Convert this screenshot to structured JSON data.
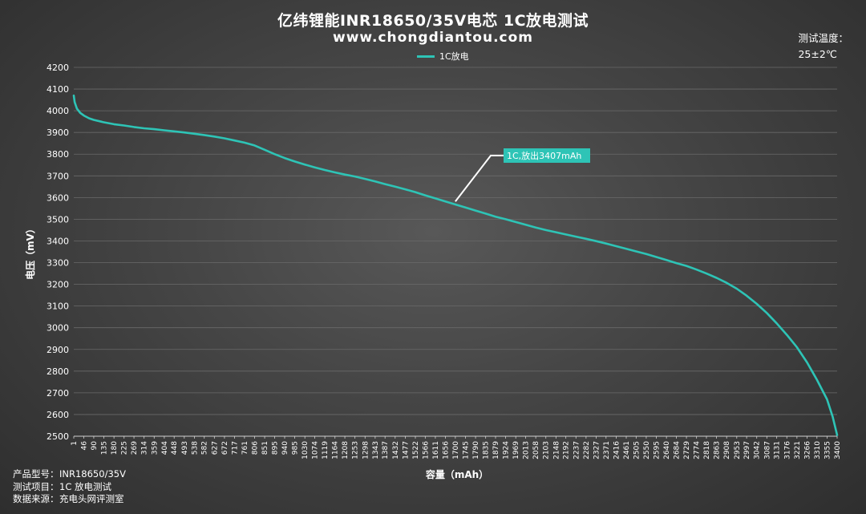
{
  "title": "亿纬锂能INR18650/35V电芯  1C放电测试",
  "subtitle": "www.chongdiantou.com",
  "temperature": {
    "label": "测试温度：",
    "value": "25±2℃"
  },
  "footer": [
    {
      "label": "产品型号：",
      "value": "INR18650/35V"
    },
    {
      "label": "测试项目：",
      "value": "1C 放电测试"
    },
    {
      "label": "数据来源：",
      "value": "充电头网评测室"
    }
  ],
  "chart_data": {
    "type": "line",
    "xlabel": "容量（mAh）",
    "ylabel": "电压（mV）",
    "ylim": [
      2500,
      4200
    ],
    "yticks": [
      2500,
      2600,
      2700,
      2800,
      2900,
      3000,
      3100,
      3200,
      3300,
      3400,
      3500,
      3600,
      3700,
      3800,
      3900,
      4000,
      4100,
      4200
    ],
    "xlim": [
      1,
      3400
    ],
    "xticks": [
      1,
      46,
      90,
      135,
      180,
      225,
      269,
      314,
      359,
      404,
      448,
      493,
      538,
      582,
      627,
      672,
      717,
      761,
      806,
      851,
      895,
      940,
      985,
      1030,
      1074,
      1119,
      1164,
      1208,
      1253,
      1298,
      1343,
      1387,
      1432,
      1477,
      1522,
      1566,
      1611,
      1656,
      1700,
      1745,
      1790,
      1835,
      1879,
      1924,
      1969,
      2013,
      2058,
      2103,
      2148,
      2192,
      2237,
      2282,
      2327,
      2371,
      2416,
      2461,
      2505,
      2550,
      2595,
      2640,
      2684,
      2729,
      2774,
      2818,
      2863,
      2908,
      2953,
      2997,
      3042,
      3087,
      3131,
      3176,
      3221,
      3266,
      3310,
      3355,
      3400
    ],
    "grid": true,
    "legend_position": "top-center",
    "series": [
      {
        "name": "1C放电",
        "color": "#2ec4b6",
        "x": [
          1,
          5,
          15,
          30,
          46,
          70,
          90,
          135,
          180,
          225,
          269,
          314,
          359,
          404,
          448,
          493,
          538,
          582,
          627,
          672,
          717,
          761,
          806,
          851,
          895,
          940,
          985,
          1030,
          1074,
          1119,
          1164,
          1208,
          1253,
          1298,
          1343,
          1387,
          1432,
          1477,
          1522,
          1566,
          1611,
          1656,
          1700,
          1745,
          1790,
          1835,
          1879,
          1924,
          1969,
          2013,
          2058,
          2103,
          2148,
          2192,
          2237,
          2282,
          2327,
          2371,
          2416,
          2461,
          2505,
          2550,
          2595,
          2640,
          2684,
          2729,
          2774,
          2818,
          2863,
          2908,
          2953,
          2997,
          3042,
          3087,
          3131,
          3176,
          3221,
          3266,
          3310,
          3355,
          3380,
          3400
        ],
        "y": [
          4070,
          4040,
          4010,
          3990,
          3978,
          3965,
          3958,
          3947,
          3938,
          3932,
          3925,
          3919,
          3915,
          3910,
          3905,
          3900,
          3894,
          3888,
          3881,
          3873,
          3863,
          3853,
          3840,
          3820,
          3800,
          3782,
          3766,
          3752,
          3739,
          3727,
          3716,
          3706,
          3697,
          3686,
          3674,
          3662,
          3650,
          3638,
          3625,
          3610,
          3596,
          3582,
          3568,
          3554,
          3540,
          3526,
          3512,
          3500,
          3487,
          3475,
          3462,
          3450,
          3440,
          3430,
          3420,
          3410,
          3399,
          3388,
          3376,
          3364,
          3352,
          3340,
          3326,
          3312,
          3298,
          3285,
          3268,
          3250,
          3230,
          3207,
          3180,
          3148,
          3110,
          3068,
          3020,
          2967,
          2910,
          2840,
          2760,
          2670,
          2590,
          2505
        ]
      }
    ],
    "annotation": {
      "text": "1C,放出3407mAh",
      "x": 1700,
      "y": 3582
    }
  }
}
